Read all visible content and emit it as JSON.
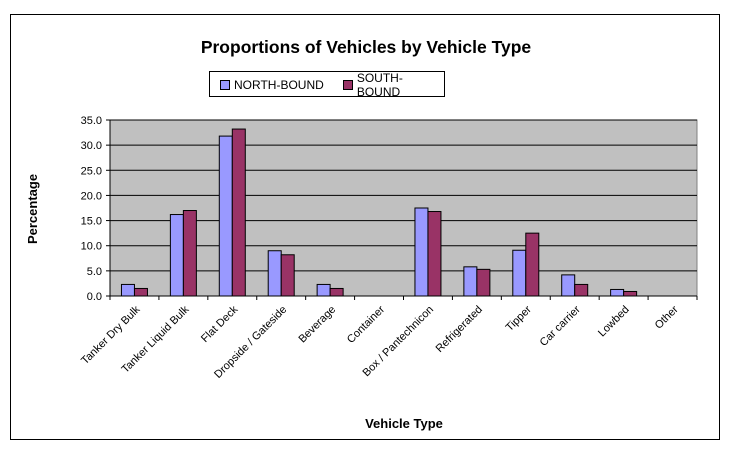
{
  "chart_data": {
    "type": "bar",
    "title": "Proportions of Vehicles by Vehicle Type",
    "xlabel": "Vehicle Type",
    "ylabel": "Percentage",
    "ylim": [
      0,
      35
    ],
    "yticks": [
      0,
      5,
      10,
      15,
      20,
      25,
      30,
      35
    ],
    "ytick_labels": [
      "0.0",
      "5.0",
      "10.0",
      "15.0",
      "20.0",
      "25.0",
      "30.0",
      "35.0"
    ],
    "grid": true,
    "legend_position": "top",
    "categories": [
      "Tanker Dry Bulk",
      "Tanker Liquid Bulk",
      "Flat Deck",
      "Dropside / Gateside",
      "Beverage",
      "Container",
      "Box / Pantechnicon",
      "Refrigerated",
      "Tipper",
      "Car carrier",
      "Lowbed",
      "Other"
    ],
    "series": [
      {
        "name": "NORTH-BOUND",
        "color": "#9999ff",
        "values": [
          2.3,
          16.2,
          31.8,
          9.0,
          2.3,
          0,
          17.5,
          5.8,
          9.1,
          4.2,
          1.3,
          0
        ]
      },
      {
        "name": "SOUTH-BOUND",
        "color": "#993366",
        "values": [
          1.5,
          17.0,
          33.2,
          8.2,
          1.5,
          0,
          16.8,
          5.3,
          12.5,
          2.3,
          0.9,
          0
        ]
      }
    ],
    "plot_background": "#c0c0c0"
  }
}
